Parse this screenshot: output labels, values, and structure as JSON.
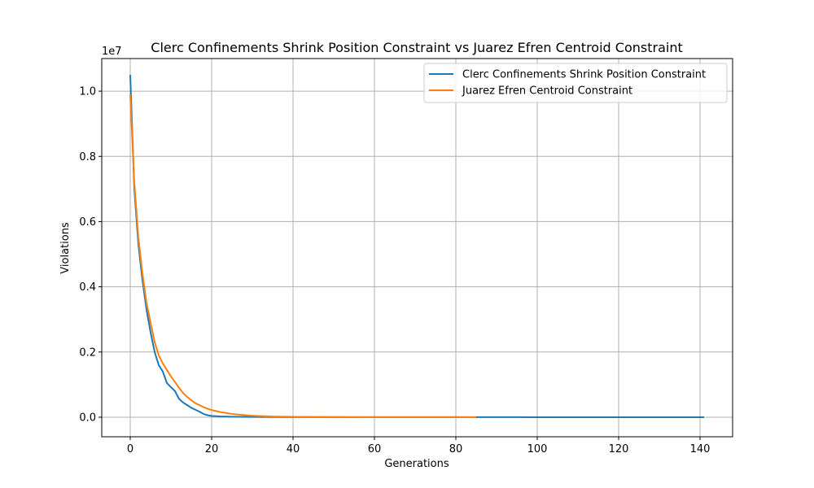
{
  "chart_data": {
    "type": "line",
    "title": "Clerc Confinements Shrink Position Constraint vs Juarez Efren Centroid Constraint",
    "xlabel": "Generations",
    "ylabel": "Violations",
    "offset_label": "1e7",
    "xlim": [
      -7,
      148
    ],
    "ylim": [
      -600000,
      11000000
    ],
    "xticks": [
      0,
      20,
      40,
      60,
      80,
      100,
      120,
      140
    ],
    "yticks": [
      0,
      2000000,
      4000000,
      6000000,
      8000000,
      10000000
    ],
    "ytick_labels": [
      "0.0",
      "0.2",
      "0.4",
      "0.6",
      "0.8",
      "1.0"
    ],
    "grid": true,
    "legend_position": "top-right",
    "series": [
      {
        "name": "Clerc Confinements Shrink Position Constraint",
        "color": "#1f77b4",
        "x": [
          0,
          1,
          2,
          3,
          4,
          5,
          6,
          7,
          8,
          9,
          10,
          11,
          12,
          13,
          14,
          15,
          16,
          17,
          18,
          19,
          20,
          22,
          25,
          30,
          40,
          60,
          85,
          100,
          120,
          141
        ],
        "y": [
          10500000,
          7000000,
          5300000,
          4200000,
          3300000,
          2600000,
          2000000,
          1600000,
          1400000,
          1050000,
          920000,
          800000,
          560000,
          450000,
          370000,
          290000,
          230000,
          170000,
          100000,
          60000,
          40000,
          25000,
          15000,
          8000,
          3000,
          1000,
          500,
          300,
          200,
          100
        ]
      },
      {
        "name": "Juarez Efren Centroid Constraint",
        "color": "#ff7f0e",
        "x": [
          0,
          1,
          2,
          3,
          4,
          5,
          6,
          7,
          8,
          9,
          10,
          11,
          12,
          13,
          14,
          15,
          16,
          17,
          18,
          19,
          20,
          22,
          25,
          28,
          30,
          35,
          40,
          50,
          60,
          70,
          80,
          85
        ],
        "y": [
          9900000,
          7200000,
          5500000,
          4400000,
          3500000,
          2900000,
          2300000,
          1900000,
          1650000,
          1450000,
          1250000,
          1080000,
          900000,
          740000,
          620000,
          520000,
          430000,
          370000,
          310000,
          260000,
          220000,
          160000,
          100000,
          65000,
          45000,
          22000,
          12000,
          5000,
          2000,
          1000,
          500,
          300
        ]
      }
    ]
  }
}
